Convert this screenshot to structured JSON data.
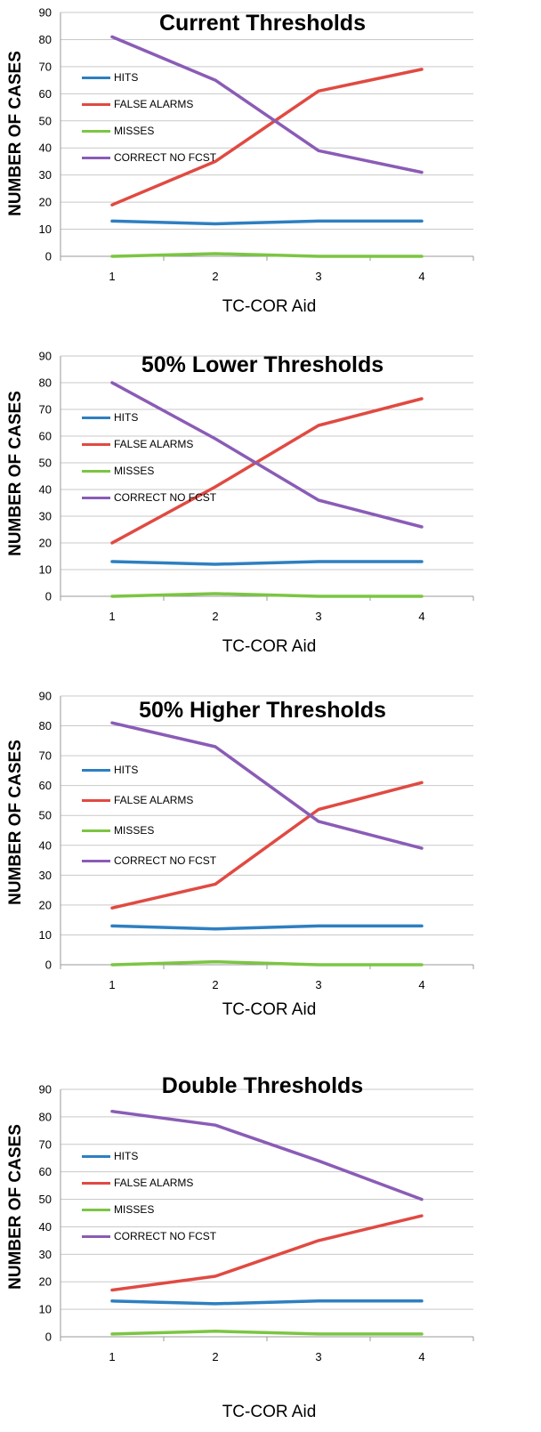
{
  "colors": {
    "hits": "#2E7FC0",
    "false_alarms": "#E04A42",
    "misses": "#7CC543",
    "correct_no_fcst": "#8A5CB6",
    "grid": "#C9C9C9",
    "axis": "#9A9A9A"
  },
  "chart_data": [
    {
      "type": "line",
      "title": "Current Thresholds",
      "xlabel": "TC-COR Aid",
      "ylabel": "NUMBER OF CASES",
      "x": [
        1,
        2,
        3,
        4
      ],
      "ylim": [
        0,
        90
      ],
      "yticks": [
        0,
        10,
        20,
        30,
        40,
        50,
        60,
        70,
        80,
        90
      ],
      "grid": "horizontal",
      "legend_position": "upper-left",
      "series": [
        {
          "name": "HITS",
          "color_key": "hits",
          "values": [
            13,
            12,
            13,
            13
          ]
        },
        {
          "name": "FALSE ALARMS",
          "color_key": "false_alarms",
          "values": [
            19,
            35,
            61,
            69
          ]
        },
        {
          "name": "MISSES",
          "color_key": "misses",
          "values": [
            0,
            1,
            0,
            0
          ]
        },
        {
          "name": "CORRECT NO FCST",
          "color_key": "correct_no_fcst",
          "values": [
            81,
            65,
            39,
            31
          ]
        }
      ]
    },
    {
      "type": "line",
      "title": "50% Lower Thresholds",
      "xlabel": "TC-COR Aid",
      "ylabel": "NUMBER OF CASES",
      "x": [
        1,
        2,
        3,
        4
      ],
      "ylim": [
        0,
        90
      ],
      "yticks": [
        0,
        10,
        20,
        30,
        40,
        50,
        60,
        70,
        80,
        90
      ],
      "grid": "horizontal",
      "legend_position": "upper-left",
      "series": [
        {
          "name": "HITS",
          "color_key": "hits",
          "values": [
            13,
            12,
            13,
            13
          ]
        },
        {
          "name": "FALSE ALARMS",
          "color_key": "false_alarms",
          "values": [
            20,
            41,
            64,
            74
          ]
        },
        {
          "name": "MISSES",
          "color_key": "misses",
          "values": [
            0,
            1,
            0,
            0
          ]
        },
        {
          "name": "CORRECT NO FCST",
          "color_key": "correct_no_fcst",
          "values": [
            80,
            59,
            36,
            26
          ]
        }
      ]
    },
    {
      "type": "line",
      "title": "50% Higher Thresholds",
      "xlabel": "TC-COR Aid",
      "ylabel": "NUMBER OF CASES",
      "x": [
        1,
        2,
        3,
        4
      ],
      "ylim": [
        0,
        90
      ],
      "yticks": [
        0,
        10,
        20,
        30,
        40,
        50,
        60,
        70,
        80,
        90
      ],
      "grid": "horizontal",
      "legend_position": "upper-left",
      "series": [
        {
          "name": "HITS",
          "color_key": "hits",
          "values": [
            13,
            12,
            13,
            13
          ]
        },
        {
          "name": "FALSE ALARMS",
          "color_key": "false_alarms",
          "values": [
            19,
            27,
            52,
            61
          ]
        },
        {
          "name": "MISSES",
          "color_key": "misses",
          "values": [
            0,
            1,
            0,
            0
          ]
        },
        {
          "name": "CORRECT NO FCST",
          "color_key": "correct_no_fcst",
          "values": [
            81,
            73,
            48,
            39
          ]
        }
      ]
    },
    {
      "type": "line",
      "title": "Double Thresholds",
      "xlabel": "TC-COR Aid",
      "ylabel": "NUMBER OF CASES",
      "x": [
        1,
        2,
        3,
        4
      ],
      "ylim": [
        0,
        90
      ],
      "yticks": [
        0,
        10,
        20,
        30,
        40,
        50,
        60,
        70,
        80,
        90
      ],
      "grid": "horizontal",
      "legend_position": "upper-left",
      "series": [
        {
          "name": "HITS",
          "color_key": "hits",
          "values": [
            13,
            12,
            13,
            13
          ]
        },
        {
          "name": "FALSE ALARMS",
          "color_key": "false_alarms",
          "values": [
            17,
            22,
            35,
            44
          ]
        },
        {
          "name": "MISSES",
          "color_key": "misses",
          "values": [
            1,
            2,
            1,
            1
          ]
        },
        {
          "name": "CORRECT NO FCST",
          "color_key": "correct_no_fcst",
          "values": [
            82,
            77,
            64,
            50
          ]
        }
      ]
    }
  ]
}
